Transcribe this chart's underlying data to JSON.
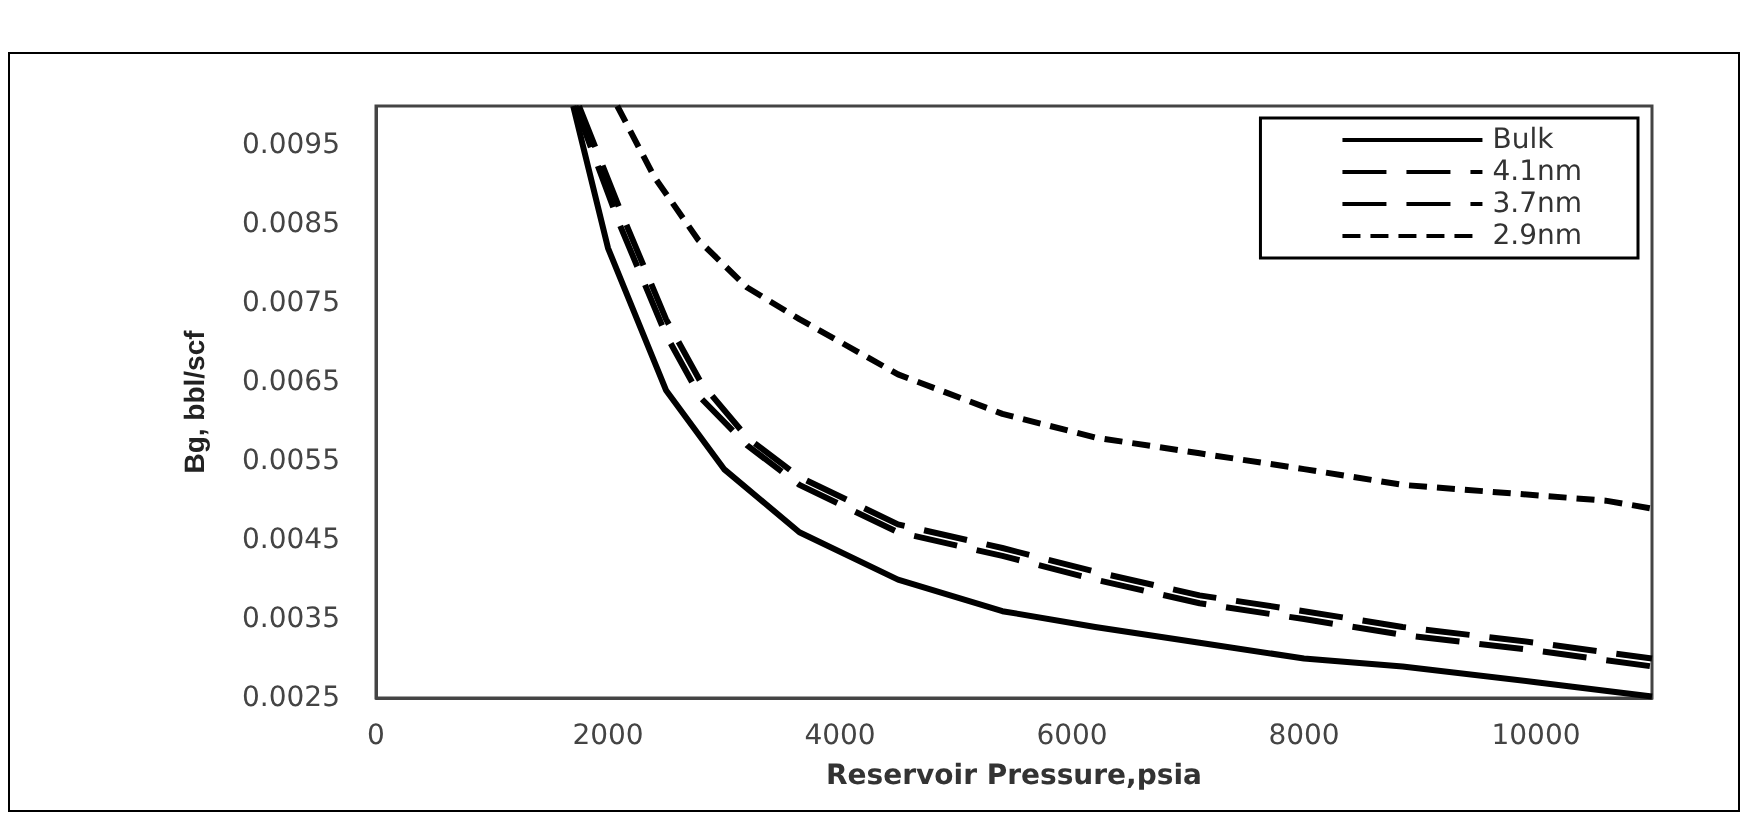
{
  "chart_data": {
    "type": "line",
    "xlabel": "Reservoir Pressure,psia",
    "ylabel": "Bg, bbl/scf",
    "xlim": [
      0,
      11000
    ],
    "xticks": [
      0,
      2000,
      4000,
      6000,
      8000,
      10000
    ],
    "ylim": [
      0.0025,
      0.01
    ],
    "yticks": [
      0.0025,
      0.0035,
      0.0045,
      0.0055,
      0.0065,
      0.0075,
      0.0085,
      0.0095
    ],
    "grid": false,
    "legend": "top right",
    "marker": "none",
    "series": [
      {
        "name": "Bulk",
        "color": "#000000",
        "line_style": "solid",
        "x": [
          1700,
          2000,
          2500,
          3000,
          3650,
          4500,
          5400,
          6200,
          7100,
          8000,
          8850,
          10000,
          11000
        ],
        "values": [
          0.01,
          0.0082,
          0.0064,
          0.0054,
          0.0046,
          0.004,
          0.0036,
          0.0034,
          0.0032,
          0.003,
          0.0029,
          0.0027,
          0.00252
        ]
      },
      {
        "name": "4.1nm",
        "color": "#000000",
        "line_style": "dashed",
        "x": [
          1720,
          2100,
          2500,
          2800,
          3200,
          3650,
          4500,
          5400,
          6200,
          7100,
          8000,
          8850,
          10000,
          11000
        ],
        "values": [
          0.01,
          0.0085,
          0.0071,
          0.0063,
          0.0057,
          0.0052,
          0.0046,
          0.0043,
          0.004,
          0.0037,
          0.0035,
          0.0033,
          0.0031,
          0.0029
        ]
      },
      {
        "name": "3.7nm",
        "color": "#000000",
        "line_style": "dashed",
        "x": [
          1750,
          2100,
          2500,
          2800,
          3200,
          3650,
          4500,
          5400,
          6200,
          7100,
          8000,
          8850,
          10000,
          11000
        ],
        "values": [
          0.01,
          0.0087,
          0.0073,
          0.0065,
          0.0058,
          0.0053,
          0.0047,
          0.0044,
          0.0041,
          0.0038,
          0.0036,
          0.0034,
          0.0032,
          0.003
        ]
      },
      {
        "name": "2.9nm",
        "color": "#000000",
        "line_style": "dotted",
        "x": [
          2080,
          2400,
          2780,
          3200,
          3650,
          4500,
          5400,
          6200,
          7100,
          8000,
          8850,
          10600,
          11000
        ],
        "values": [
          0.01,
          0.0091,
          0.0083,
          0.0077,
          0.0073,
          0.0066,
          0.0061,
          0.0058,
          0.0056,
          0.0054,
          0.0052,
          0.005,
          0.0049
        ]
      }
    ]
  }
}
